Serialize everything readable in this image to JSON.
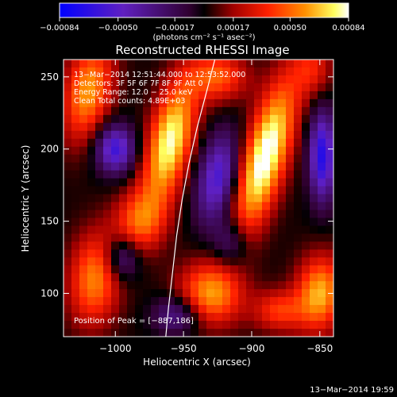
{
  "chart_data": {
    "type": "heatmap",
    "title": "Reconstructed RHESSI Image",
    "xlabel": "Heliocentric X (arcsec)",
    "ylabel": "Heliocentric Y (arcsec)",
    "xlim": [
      -1038,
      -840
    ],
    "ylim": [
      70,
      262
    ],
    "x_ticks": [
      -1000,
      -950,
      -900,
      -850
    ],
    "y_ticks": [
      100,
      150,
      200,
      250
    ],
    "x_tick_labels": [
      "−1000",
      "−950",
      "−900",
      "−850"
    ],
    "y_tick_labels": [
      "100",
      "150",
      "200",
      "250"
    ],
    "colorbar": {
      "range": [
        -0.00084,
        0.00084
      ],
      "ticks": [
        -0.00084,
        -0.0005,
        -0.00017,
        0.00017,
        0.0005,
        0.00084
      ],
      "tick_labels": [
        "−0.00084",
        "−0.00050",
        "−0.00017",
        "0.00017",
        "0.00050",
        "0.00084"
      ],
      "units": "(photons cm⁻² s⁻¹ asec⁻²)"
    },
    "annotations": [
      "13−Mar−2014 12:51:44.000 to 12:53:52.000",
      "Detectors: 3F 5F 6F 7F 8F 9F Att 0",
      "Energy Range: 12.0 − 25.0 keV",
      "Clean    Total counts: 4.89E+03"
    ],
    "peak_label": "Position of Peak = [−887,186]",
    "peak": [
      -887,
      186
    ],
    "limb_curve": [
      [
        -927,
        262
      ],
      [
        -933,
        240
      ],
      [
        -940,
        215
      ],
      [
        -946,
        190
      ],
      [
        -951,
        165
      ],
      [
        -955,
        140
      ],
      [
        -958,
        115
      ],
      [
        -961,
        90
      ],
      [
        -963,
        70
      ]
    ],
    "blobs": [
      {
        "x": -890,
        "y": 195,
        "sx": 11,
        "sy": 38,
        "rot": 0.3,
        "amp": 1.05
      },
      {
        "x": -960,
        "y": 205,
        "sx": 11,
        "sy": 30,
        "rot": 0.25,
        "amp": 0.95
      },
      {
        "x": -982,
        "y": 150,
        "sx": 13,
        "sy": 16,
        "rot": 0.3,
        "amp": 0.55
      },
      {
        "x": -1020,
        "y": 240,
        "sx": 12,
        "sy": 24,
        "rot": 0.2,
        "amp": 0.7
      },
      {
        "x": -1015,
        "y": 110,
        "sx": 13,
        "sy": 22,
        "rot": 0.1,
        "amp": 0.65
      },
      {
        "x": -925,
        "y": 250,
        "sx": 15,
        "sy": 12,
        "rot": 0,
        "amp": 0.55
      },
      {
        "x": -930,
        "y": 100,
        "sx": 16,
        "sy": 15,
        "rot": 0.3,
        "amp": 0.7
      },
      {
        "x": -850,
        "y": 100,
        "sx": 12,
        "sy": 18,
        "rot": 0.1,
        "amp": 0.75
      },
      {
        "x": -880,
        "y": 88,
        "sx": 13,
        "sy": 10,
        "rot": 0,
        "amp": 0.45
      },
      {
        "x": -855,
        "y": 255,
        "sx": 10,
        "sy": 14,
        "rot": 0,
        "amp": 0.35
      },
      {
        "x": -1000,
        "y": 200,
        "sx": 10,
        "sy": 12,
        "rot": 0,
        "amp": -0.75
      },
      {
        "x": -995,
        "y": 125,
        "sx": 9,
        "sy": 11,
        "rot": 0,
        "amp": -0.5
      },
      {
        "x": -925,
        "y": 180,
        "sx": 10,
        "sy": 22,
        "rot": 0.2,
        "amp": -0.7
      },
      {
        "x": -915,
        "y": 135,
        "sx": 9,
        "sy": 12,
        "rot": 0,
        "amp": -0.4
      },
      {
        "x": -848,
        "y": 195,
        "sx": 7,
        "sy": 22,
        "rot": 0,
        "amp": -0.85
      },
      {
        "x": -955,
        "y": 85,
        "sx": 12,
        "sy": 9,
        "rot": 0,
        "amp": -0.45
      }
    ]
  },
  "footer_timestamp": "13−Mar−2014 19:59"
}
